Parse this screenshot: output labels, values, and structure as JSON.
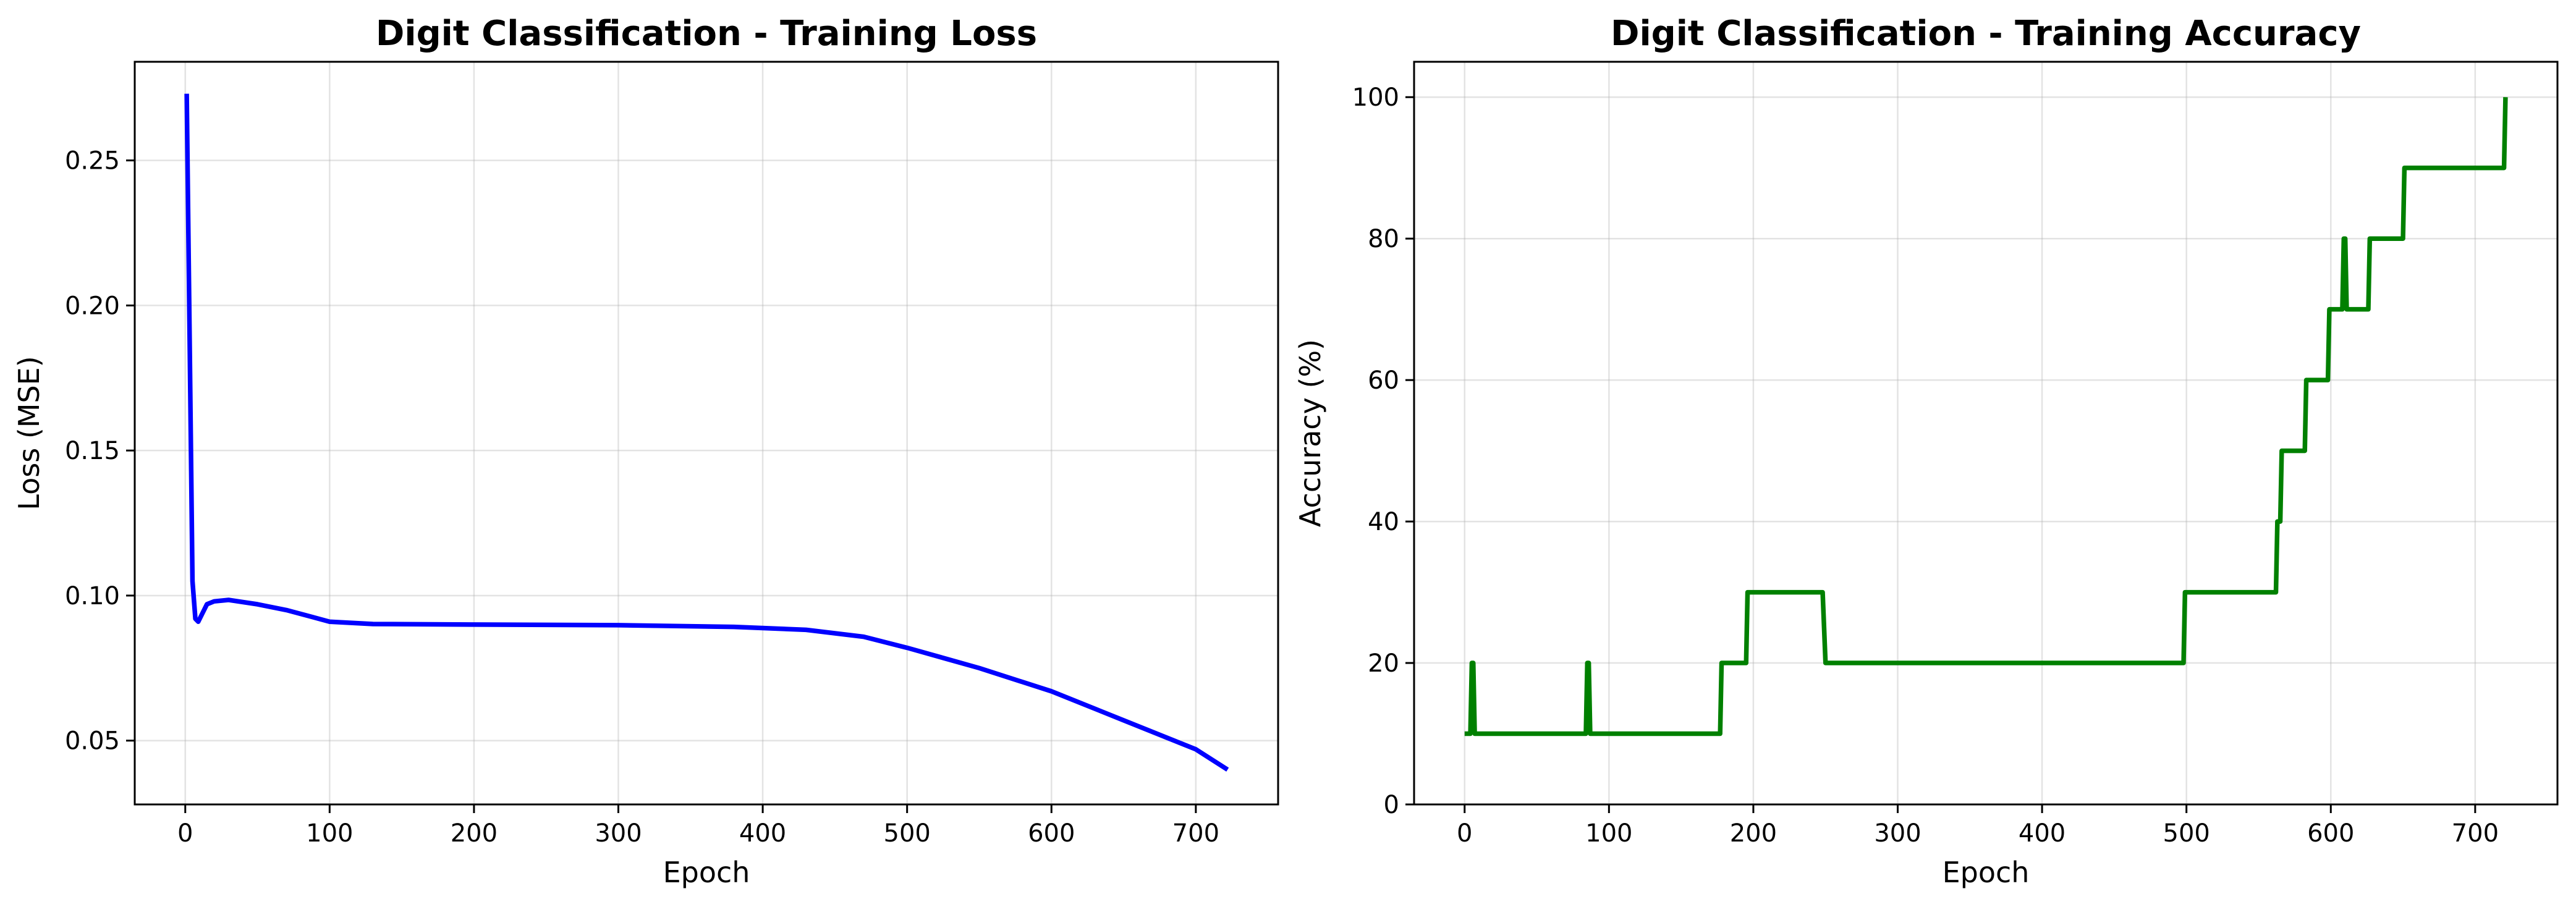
{
  "chart_data": [
    {
      "type": "line",
      "title": "Digit Classification - Training Loss",
      "xlabel": "Epoch",
      "ylabel": "Loss (MSE)",
      "xlim": [
        -35,
        757
      ],
      "ylim": [
        0.028,
        0.284
      ],
      "xticks": [
        0,
        100,
        200,
        300,
        400,
        500,
        600,
        700
      ],
      "yticks": [
        0.05,
        0.1,
        0.15,
        0.2,
        0.25
      ],
      "ytick_labels": [
        "0.05",
        "0.10",
        "0.15",
        "0.20",
        "0.25"
      ],
      "grid": true,
      "series": [
        {
          "color": "#0000ff",
          "x": [
            1,
            3,
            5,
            7,
            9,
            12,
            15,
            20,
            30,
            50,
            70,
            85,
            100,
            130,
            200,
            300,
            380,
            430,
            470,
            500,
            550,
            600,
            650,
            700,
            722
          ],
          "y": [
            0.273,
            0.19,
            0.105,
            0.092,
            0.091,
            0.094,
            0.097,
            0.098,
            0.0985,
            0.097,
            0.095,
            0.093,
            0.091,
            0.0902,
            0.09,
            0.0898,
            0.0892,
            0.0882,
            0.0858,
            0.082,
            0.075,
            0.067,
            0.057,
            0.047,
            0.04
          ]
        }
      ]
    },
    {
      "type": "line",
      "title": "Digit Classification - Training Accuracy",
      "xlabel": "Epoch",
      "ylabel": "Accuracy (%)",
      "xlim": [
        -35,
        757
      ],
      "ylim": [
        0,
        105
      ],
      "xticks": [
        0,
        100,
        200,
        300,
        400,
        500,
        600,
        700
      ],
      "yticks": [
        0,
        20,
        40,
        60,
        80,
        100
      ],
      "ytick_labels": [
        "0",
        "20",
        "40",
        "60",
        "80",
        "100"
      ],
      "grid": true,
      "series": [
        {
          "color": "#008000",
          "x": [
            0,
            4,
            5,
            6,
            7,
            84,
            85,
            86,
            87,
            177,
            178,
            195,
            196,
            248,
            250,
            498,
            499,
            562,
            563,
            565,
            566,
            582,
            583,
            598,
            599,
            608,
            609,
            610,
            611,
            626,
            627,
            650,
            651,
            720,
            721
          ],
          "y": [
            10,
            10,
            20,
            20,
            10,
            10,
            20,
            20,
            10,
            10,
            20,
            20,
            30,
            30,
            20,
            20,
            30,
            30,
            40,
            40,
            50,
            50,
            60,
            60,
            70,
            70,
            80,
            80,
            70,
            70,
            80,
            80,
            90,
            90,
            100
          ]
        }
      ]
    }
  ]
}
